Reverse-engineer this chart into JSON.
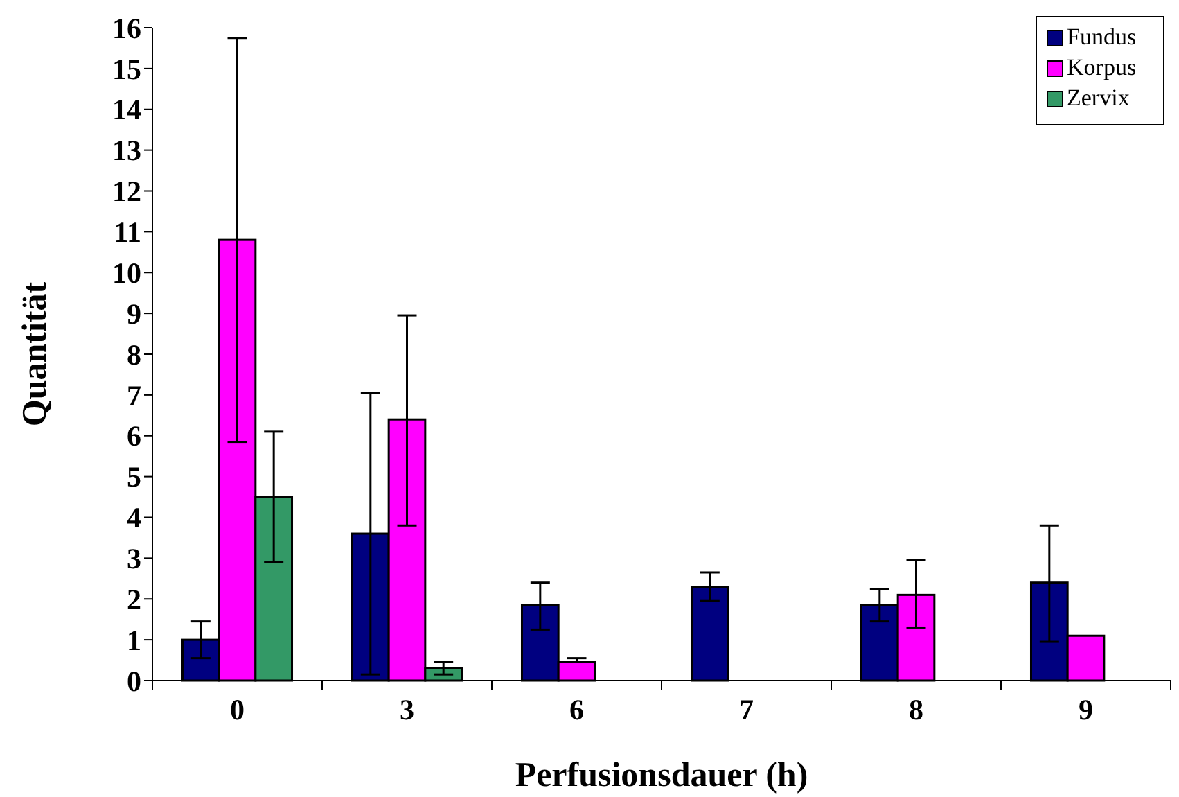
{
  "chart_data": {
    "type": "bar",
    "xlabel": "Perfusionsdauer (h)",
    "ylabel": "Quantität",
    "categories": [
      "0",
      "3",
      "6",
      "7",
      "8",
      "9"
    ],
    "series": [
      {
        "name": "Fundus",
        "color": "#000080",
        "values": [
          1.0,
          3.6,
          1.85,
          2.3,
          1.85,
          2.4
        ],
        "errors": [
          [
            0.55,
            1.45
          ],
          [
            0.15,
            7.05
          ],
          [
            1.25,
            2.4
          ],
          [
            1.95,
            2.65
          ],
          [
            1.45,
            2.25
          ],
          [
            0.95,
            3.8
          ]
        ]
      },
      {
        "name": "Korpus",
        "color": "#ff00ff",
        "values": [
          10.8,
          6.4,
          0.45,
          null,
          2.1,
          1.1
        ],
        "errors": [
          [
            5.85,
            15.75
          ],
          [
            3.8,
            8.95
          ],
          [
            0.45,
            0.55
          ],
          null,
          [
            1.3,
            2.95
          ],
          null
        ]
      },
      {
        "name": "Zervix",
        "color": "#339966",
        "values": [
          4.5,
          0.3,
          null,
          null,
          null,
          null
        ],
        "errors": [
          [
            2.9,
            6.1
          ],
          [
            0.15,
            0.45
          ],
          null,
          null,
          null,
          null
        ]
      }
    ],
    "ylim": [
      0,
      16
    ],
    "yticks": [
      0,
      1,
      2,
      3,
      4,
      5,
      6,
      7,
      8,
      9,
      10,
      11,
      12,
      13,
      14,
      15,
      16
    ],
    "grid": false,
    "legend": "top right"
  }
}
